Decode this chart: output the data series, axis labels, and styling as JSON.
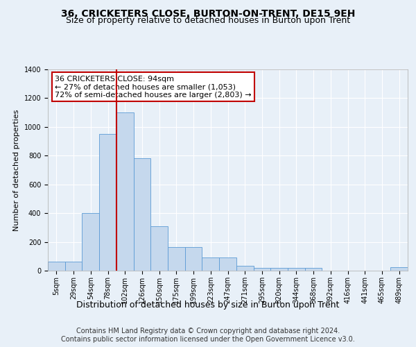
{
  "title1": "36, CRICKETERS CLOSE, BURTON-ON-TRENT, DE15 9EH",
  "title2": "Size of property relative to detached houses in Burton upon Trent",
  "xlabel": "Distribution of detached houses by size in Burton upon Trent",
  "ylabel": "Number of detached properties",
  "footer": "Contains HM Land Registry data © Crown copyright and database right 2024.\nContains public sector information licensed under the Open Government Licence v3.0.",
  "categories": [
    "5sqm",
    "29sqm",
    "54sqm",
    "78sqm",
    "102sqm",
    "126sqm",
    "150sqm",
    "175sqm",
    "199sqm",
    "223sqm",
    "247sqm",
    "271sqm",
    "295sqm",
    "320sqm",
    "344sqm",
    "368sqm",
    "392sqm",
    "416sqm",
    "441sqm",
    "465sqm",
    "489sqm"
  ],
  "values": [
    65,
    65,
    400,
    950,
    1100,
    780,
    310,
    165,
    165,
    90,
    90,
    35,
    20,
    20,
    20,
    20,
    0,
    0,
    0,
    0,
    25
  ],
  "bar_color": "#c5d8ed",
  "bar_edge_color": "#5b9bd5",
  "vline_x_index": 4,
  "vline_color": "#c00000",
  "annotation_text": "36 CRICKETERS CLOSE: 94sqm\n← 27% of detached houses are smaller (1,053)\n72% of semi-detached houses are larger (2,803) →",
  "annotation_box_color": "white",
  "annotation_box_edge": "#c00000",
  "ylim": [
    0,
    1400
  ],
  "yticks": [
    0,
    200,
    400,
    600,
    800,
    1000,
    1200,
    1400
  ],
  "background_color": "#e8f0f8",
  "plot_bg_color": "#e8f0f8",
  "grid_color": "white",
  "title1_fontsize": 10,
  "title2_fontsize": 9,
  "xlabel_fontsize": 9,
  "ylabel_fontsize": 8,
  "tick_fontsize": 7,
  "footer_fontsize": 7,
  "annotation_fontsize": 8
}
